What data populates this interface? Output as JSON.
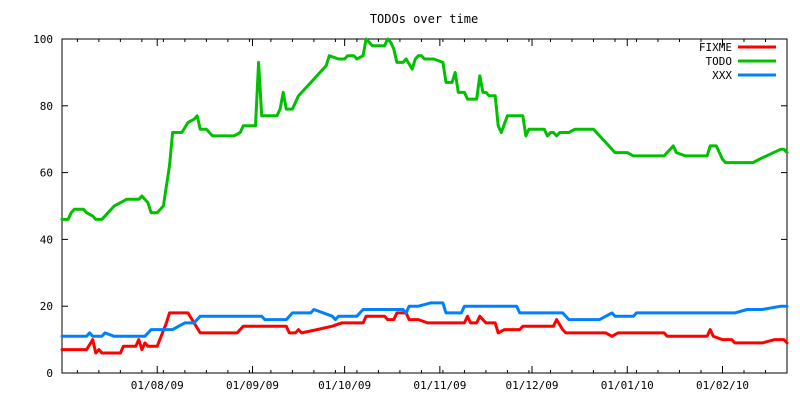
{
  "chart_data": {
    "type": "line",
    "title": "TODOs over time",
    "xlabel": "",
    "ylabel": "",
    "ylim": [
      0,
      100
    ],
    "xlim": [
      "2009-07-01",
      "2010-02-22"
    ],
    "yticks": [
      0,
      20,
      40,
      60,
      80,
      100
    ],
    "xticks": [
      {
        "date": "2009-08-01",
        "label": "01/08/09"
      },
      {
        "date": "2009-09-01",
        "label": "01/09/09"
      },
      {
        "date": "2009-10-01",
        "label": "01/10/09"
      },
      {
        "date": "2009-11-01",
        "label": "01/11/09"
      },
      {
        "date": "2009-12-01",
        "label": "01/12/09"
      },
      {
        "date": "2010-01-01",
        "label": "01/01/10"
      },
      {
        "date": "2010-02-01",
        "label": "01/02/10"
      }
    ],
    "grid": false,
    "legend_position": "top-right",
    "series": [
      {
        "name": "FIXME",
        "color": "#ff0000",
        "points": [
          [
            "2009-07-01",
            7
          ],
          [
            "2009-07-09",
            7
          ],
          [
            "2009-07-11",
            10
          ],
          [
            "2009-07-12",
            6
          ],
          [
            "2009-07-13",
            7
          ],
          [
            "2009-07-14",
            6
          ],
          [
            "2009-07-20",
            6
          ],
          [
            "2009-07-21",
            8
          ],
          [
            "2009-07-25",
            8
          ],
          [
            "2009-07-26",
            10
          ],
          [
            "2009-07-27",
            7
          ],
          [
            "2009-07-28",
            9
          ],
          [
            "2009-07-29",
            8
          ],
          [
            "2009-08-01",
            8
          ],
          [
            "2009-08-04",
            15
          ],
          [
            "2009-08-05",
            18
          ],
          [
            "2009-08-11",
            18
          ],
          [
            "2009-08-13",
            15
          ],
          [
            "2009-08-15",
            12
          ],
          [
            "2009-08-27",
            12
          ],
          [
            "2009-08-29",
            14
          ],
          [
            "2009-09-12",
            14
          ],
          [
            "2009-09-13",
            12
          ],
          [
            "2009-09-15",
            12
          ],
          [
            "2009-09-16",
            13
          ],
          [
            "2009-09-17",
            12
          ],
          [
            "2009-09-22",
            13
          ],
          [
            "2009-09-27",
            14
          ],
          [
            "2009-09-30",
            15
          ],
          [
            "2009-10-07",
            15
          ],
          [
            "2009-10-08",
            17
          ],
          [
            "2009-10-14",
            17
          ],
          [
            "2009-10-15",
            16
          ],
          [
            "2009-10-17",
            16
          ],
          [
            "2009-10-18",
            18
          ],
          [
            "2009-10-21",
            18
          ],
          [
            "2009-10-22",
            16
          ],
          [
            "2009-10-25",
            16
          ],
          [
            "2009-10-28",
            15
          ],
          [
            "2009-11-09",
            15
          ],
          [
            "2009-11-10",
            17
          ],
          [
            "2009-11-11",
            15
          ],
          [
            "2009-11-13",
            15
          ],
          [
            "2009-11-14",
            17
          ],
          [
            "2009-11-16",
            15
          ],
          [
            "2009-11-19",
            15
          ],
          [
            "2009-11-20",
            12
          ],
          [
            "2009-11-22",
            13
          ],
          [
            "2009-11-27",
            13
          ],
          [
            "2009-11-28",
            14
          ],
          [
            "2009-12-08",
            14
          ],
          [
            "2009-12-09",
            16
          ],
          [
            "2009-12-11",
            13
          ],
          [
            "2009-12-12",
            12
          ],
          [
            "2009-12-25",
            12
          ],
          [
            "2009-12-27",
            11
          ],
          [
            "2009-12-29",
            12
          ],
          [
            "2010-01-13",
            12
          ],
          [
            "2010-01-14",
            11
          ],
          [
            "2010-01-27",
            11
          ],
          [
            "2010-01-28",
            13
          ],
          [
            "2010-01-29",
            11
          ],
          [
            "2010-02-01",
            10
          ],
          [
            "2010-02-04",
            10
          ],
          [
            "2010-02-05",
            9
          ],
          [
            "2010-02-14",
            9
          ],
          [
            "2010-02-18",
            10
          ],
          [
            "2010-02-21",
            10
          ],
          [
            "2010-02-22",
            9
          ]
        ]
      },
      {
        "name": "TODO",
        "color": "#00c000",
        "points": [
          [
            "2009-07-01",
            46
          ],
          [
            "2009-07-03",
            46
          ],
          [
            "2009-07-04",
            48
          ],
          [
            "2009-07-05",
            49
          ],
          [
            "2009-07-08",
            49
          ],
          [
            "2009-07-09",
            48
          ],
          [
            "2009-07-11",
            47
          ],
          [
            "2009-07-12",
            46
          ],
          [
            "2009-07-14",
            46
          ],
          [
            "2009-07-16",
            48
          ],
          [
            "2009-07-18",
            50
          ],
          [
            "2009-07-20",
            51
          ],
          [
            "2009-07-22",
            52
          ],
          [
            "2009-07-26",
            52
          ],
          [
            "2009-07-27",
            53
          ],
          [
            "2009-07-29",
            51
          ],
          [
            "2009-07-30",
            48
          ],
          [
            "2009-08-01",
            48
          ],
          [
            "2009-08-03",
            50
          ],
          [
            "2009-08-04",
            56
          ],
          [
            "2009-08-05",
            62
          ],
          [
            "2009-08-06",
            72
          ],
          [
            "2009-08-09",
            72
          ],
          [
            "2009-08-11",
            75
          ],
          [
            "2009-08-13",
            76
          ],
          [
            "2009-08-14",
            77
          ],
          [
            "2009-08-15",
            73
          ],
          [
            "2009-08-17",
            73
          ],
          [
            "2009-08-19",
            71
          ],
          [
            "2009-08-26",
            71
          ],
          [
            "2009-08-28",
            72
          ],
          [
            "2009-08-29",
            74
          ],
          [
            "2009-09-02",
            74
          ],
          [
            "2009-09-03",
            93
          ],
          [
            "2009-09-04",
            77
          ],
          [
            "2009-09-09",
            77
          ],
          [
            "2009-09-10",
            79
          ],
          [
            "2009-09-11",
            84
          ],
          [
            "2009-09-12",
            79
          ],
          [
            "2009-09-14",
            79
          ],
          [
            "2009-09-16",
            83
          ],
          [
            "2009-09-18",
            85
          ],
          [
            "2009-09-21",
            88
          ],
          [
            "2009-09-25",
            92
          ],
          [
            "2009-09-26",
            95
          ],
          [
            "2009-09-29",
            94
          ],
          [
            "2009-10-01",
            94
          ],
          [
            "2009-10-02",
            95
          ],
          [
            "2009-10-04",
            95
          ],
          [
            "2009-10-05",
            94
          ],
          [
            "2009-10-07",
            95
          ],
          [
            "2009-10-08",
            100
          ],
          [
            "2009-10-09",
            99
          ],
          [
            "2009-10-10",
            98
          ],
          [
            "2009-10-14",
            98
          ],
          [
            "2009-10-15",
            100
          ],
          [
            "2009-10-16",
            99
          ],
          [
            "2009-10-17",
            97
          ],
          [
            "2009-10-18",
            93
          ],
          [
            "2009-10-20",
            93
          ],
          [
            "2009-10-21",
            94
          ],
          [
            "2009-10-23",
            91
          ],
          [
            "2009-10-24",
            94
          ],
          [
            "2009-10-25",
            95
          ],
          [
            "2009-10-26",
            95
          ],
          [
            "2009-10-27",
            94
          ],
          [
            "2009-10-30",
            94
          ],
          [
            "2009-11-02",
            93
          ],
          [
            "2009-11-03",
            87
          ],
          [
            "2009-11-05",
            87
          ],
          [
            "2009-11-06",
            90
          ],
          [
            "2009-11-07",
            84
          ],
          [
            "2009-11-09",
            84
          ],
          [
            "2009-11-10",
            82
          ],
          [
            "2009-11-13",
            82
          ],
          [
            "2009-11-14",
            89
          ],
          [
            "2009-11-15",
            84
          ],
          [
            "2009-11-16",
            84
          ],
          [
            "2009-11-17",
            83
          ],
          [
            "2009-11-19",
            83
          ],
          [
            "2009-11-20",
            74
          ],
          [
            "2009-11-21",
            72
          ],
          [
            "2009-11-23",
            77
          ],
          [
            "2009-11-28",
            77
          ],
          [
            "2009-11-29",
            71
          ],
          [
            "2009-11-30",
            73
          ],
          [
            "2009-12-05",
            73
          ],
          [
            "2009-12-06",
            71
          ],
          [
            "2009-12-07",
            72
          ],
          [
            "2009-12-08",
            72
          ],
          [
            "2009-12-09",
            71
          ],
          [
            "2009-12-10",
            72
          ],
          [
            "2009-12-13",
            72
          ],
          [
            "2009-12-15",
            73
          ],
          [
            "2009-12-21",
            73
          ],
          [
            "2009-12-22",
            72
          ],
          [
            "2009-12-25",
            69
          ],
          [
            "2009-12-28",
            66
          ],
          [
            "2010-01-01",
            66
          ],
          [
            "2010-01-03",
            65
          ],
          [
            "2010-01-13",
            65
          ],
          [
            "2010-01-16",
            68
          ],
          [
            "2010-01-17",
            66
          ],
          [
            "2010-01-20",
            65
          ],
          [
            "2010-01-27",
            65
          ],
          [
            "2010-01-28",
            68
          ],
          [
            "2010-01-30",
            68
          ],
          [
            "2010-01-31",
            66
          ],
          [
            "2010-02-01",
            64
          ],
          [
            "2010-02-02",
            63
          ],
          [
            "2010-02-11",
            63
          ],
          [
            "2010-02-13",
            64
          ],
          [
            "2010-02-20",
            67
          ],
          [
            "2010-02-21",
            67
          ],
          [
            "2010-02-22",
            66
          ]
        ]
      },
      {
        "name": "XXX",
        "color": "#0080ff",
        "points": [
          [
            "2009-07-01",
            11
          ],
          [
            "2009-07-09",
            11
          ],
          [
            "2009-07-10",
            12
          ],
          [
            "2009-07-11",
            11
          ],
          [
            "2009-07-14",
            11
          ],
          [
            "2009-07-15",
            12
          ],
          [
            "2009-07-18",
            11
          ],
          [
            "2009-07-28",
            11
          ],
          [
            "2009-07-30",
            13
          ],
          [
            "2009-08-06",
            13
          ],
          [
            "2009-08-08",
            14
          ],
          [
            "2009-08-10",
            15
          ],
          [
            "2009-08-13",
            15
          ],
          [
            "2009-08-15",
            17
          ],
          [
            "2009-09-04",
            17
          ],
          [
            "2009-09-05",
            16
          ],
          [
            "2009-09-12",
            16
          ],
          [
            "2009-09-14",
            18
          ],
          [
            "2009-09-20",
            18
          ],
          [
            "2009-09-21",
            19
          ],
          [
            "2009-09-27",
            17
          ],
          [
            "2009-09-28",
            16
          ],
          [
            "2009-09-29",
            17
          ],
          [
            "2009-10-05",
            17
          ],
          [
            "2009-10-07",
            19
          ],
          [
            "2009-10-20",
            19
          ],
          [
            "2009-10-21",
            18
          ],
          [
            "2009-10-22",
            20
          ],
          [
            "2009-10-24",
            20
          ],
          [
            "2009-10-25",
            20
          ],
          [
            "2009-10-29",
            21
          ],
          [
            "2009-11-02",
            21
          ],
          [
            "2009-11-03",
            18
          ],
          [
            "2009-11-08",
            18
          ],
          [
            "2009-11-09",
            20
          ],
          [
            "2009-11-26",
            20
          ],
          [
            "2009-11-27",
            18
          ],
          [
            "2009-12-11",
            18
          ],
          [
            "2009-12-13",
            16
          ],
          [
            "2009-12-23",
            16
          ],
          [
            "2009-12-27",
            18
          ],
          [
            "2009-12-28",
            17
          ],
          [
            "2010-01-03",
            17
          ],
          [
            "2010-01-04",
            18
          ],
          [
            "2010-02-05",
            18
          ],
          [
            "2010-02-09",
            19
          ],
          [
            "2010-02-14",
            19
          ],
          [
            "2010-02-20",
            20
          ],
          [
            "2010-02-22",
            20
          ]
        ]
      }
    ]
  }
}
